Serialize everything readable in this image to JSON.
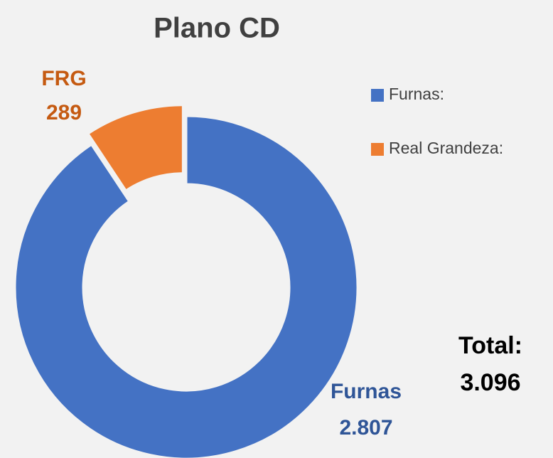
{
  "chart_data": {
    "type": "donut",
    "title": "Plano CD",
    "categories": [
      "Furnas:",
      "Real Grandeza:"
    ],
    "data_label_names": [
      "Furnas",
      "FRG"
    ],
    "values": [
      2807,
      289
    ],
    "value_labels": [
      "2.807",
      "289"
    ],
    "colors": [
      "#4472c4",
      "#ed7d31"
    ],
    "label_colors": [
      "#2f5597",
      "#c55a11"
    ],
    "annotations": [
      "Total:",
      "3.096"
    ]
  }
}
